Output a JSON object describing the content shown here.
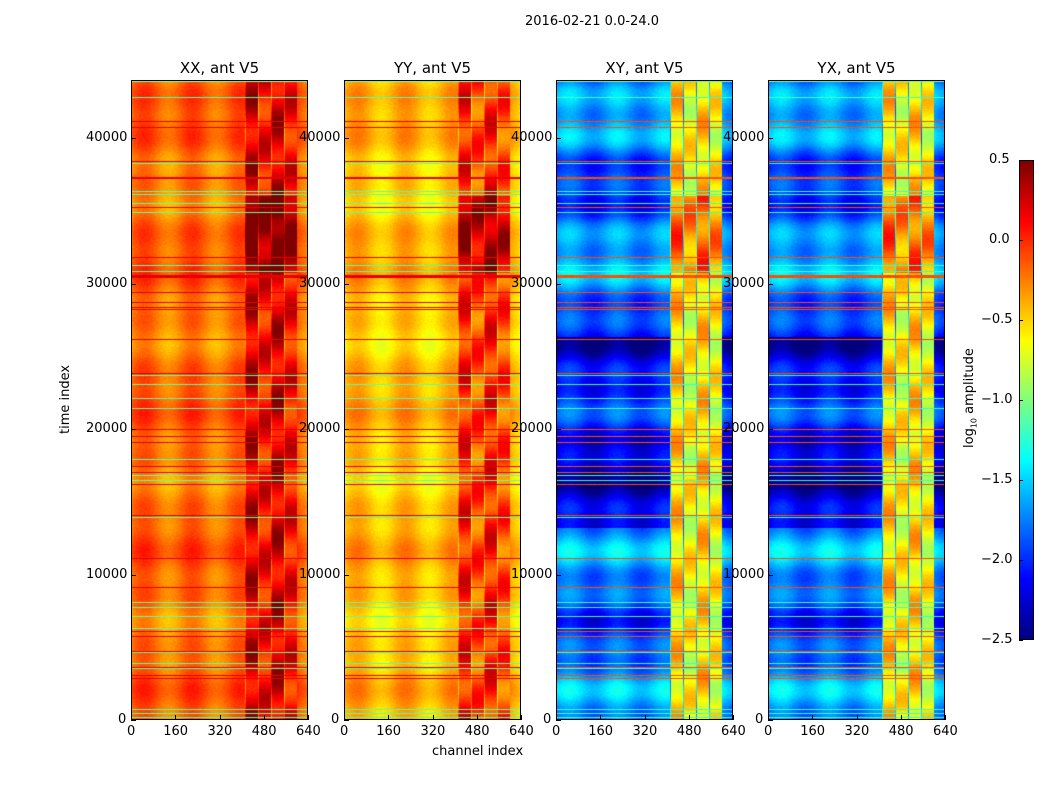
{
  "figure_title": "2016-02-21 0.0-24.0",
  "chart_data": {
    "type": "heatmap",
    "title": "2016-02-21 0.0-24.0",
    "xlabel": "channel index",
    "ylabel": "time index",
    "xlim": [
      0,
      640
    ],
    "ylim": [
      0,
      44000
    ],
    "xticks": [
      "0",
      "160",
      "320",
      "480",
      "640"
    ],
    "yticks": [
      "0",
      "10000",
      "20000",
      "30000",
      "40000"
    ],
    "panels": [
      {
        "title": "XX, ant V5",
        "base": -0.2,
        "band": 0.15,
        "band_channels": [
          410,
          600
        ]
      },
      {
        "title": "YY, ant V5",
        "base": -0.45,
        "band": -0.05,
        "band_channels": [
          410,
          600
        ]
      },
      {
        "title": "XY, ant V5",
        "base": -1.8,
        "band": -0.6,
        "band_channels": [
          410,
          600
        ]
      },
      {
        "title": "YX, ant V5",
        "base": -1.8,
        "band": -0.6,
        "band_channels": [
          410,
          600
        ]
      }
    ],
    "colorbar": {
      "label": "log10 amplitude",
      "label_main": "log",
      "label_sub": "10",
      "label_rest": " amplitude",
      "range": [
        -2.5,
        0.5
      ],
      "ticks": [
        "0.5",
        "0.0",
        "−0.5",
        "−1.0",
        "−1.5",
        "−2.0",
        "−2.5"
      ],
      "colormap": "jet"
    }
  }
}
